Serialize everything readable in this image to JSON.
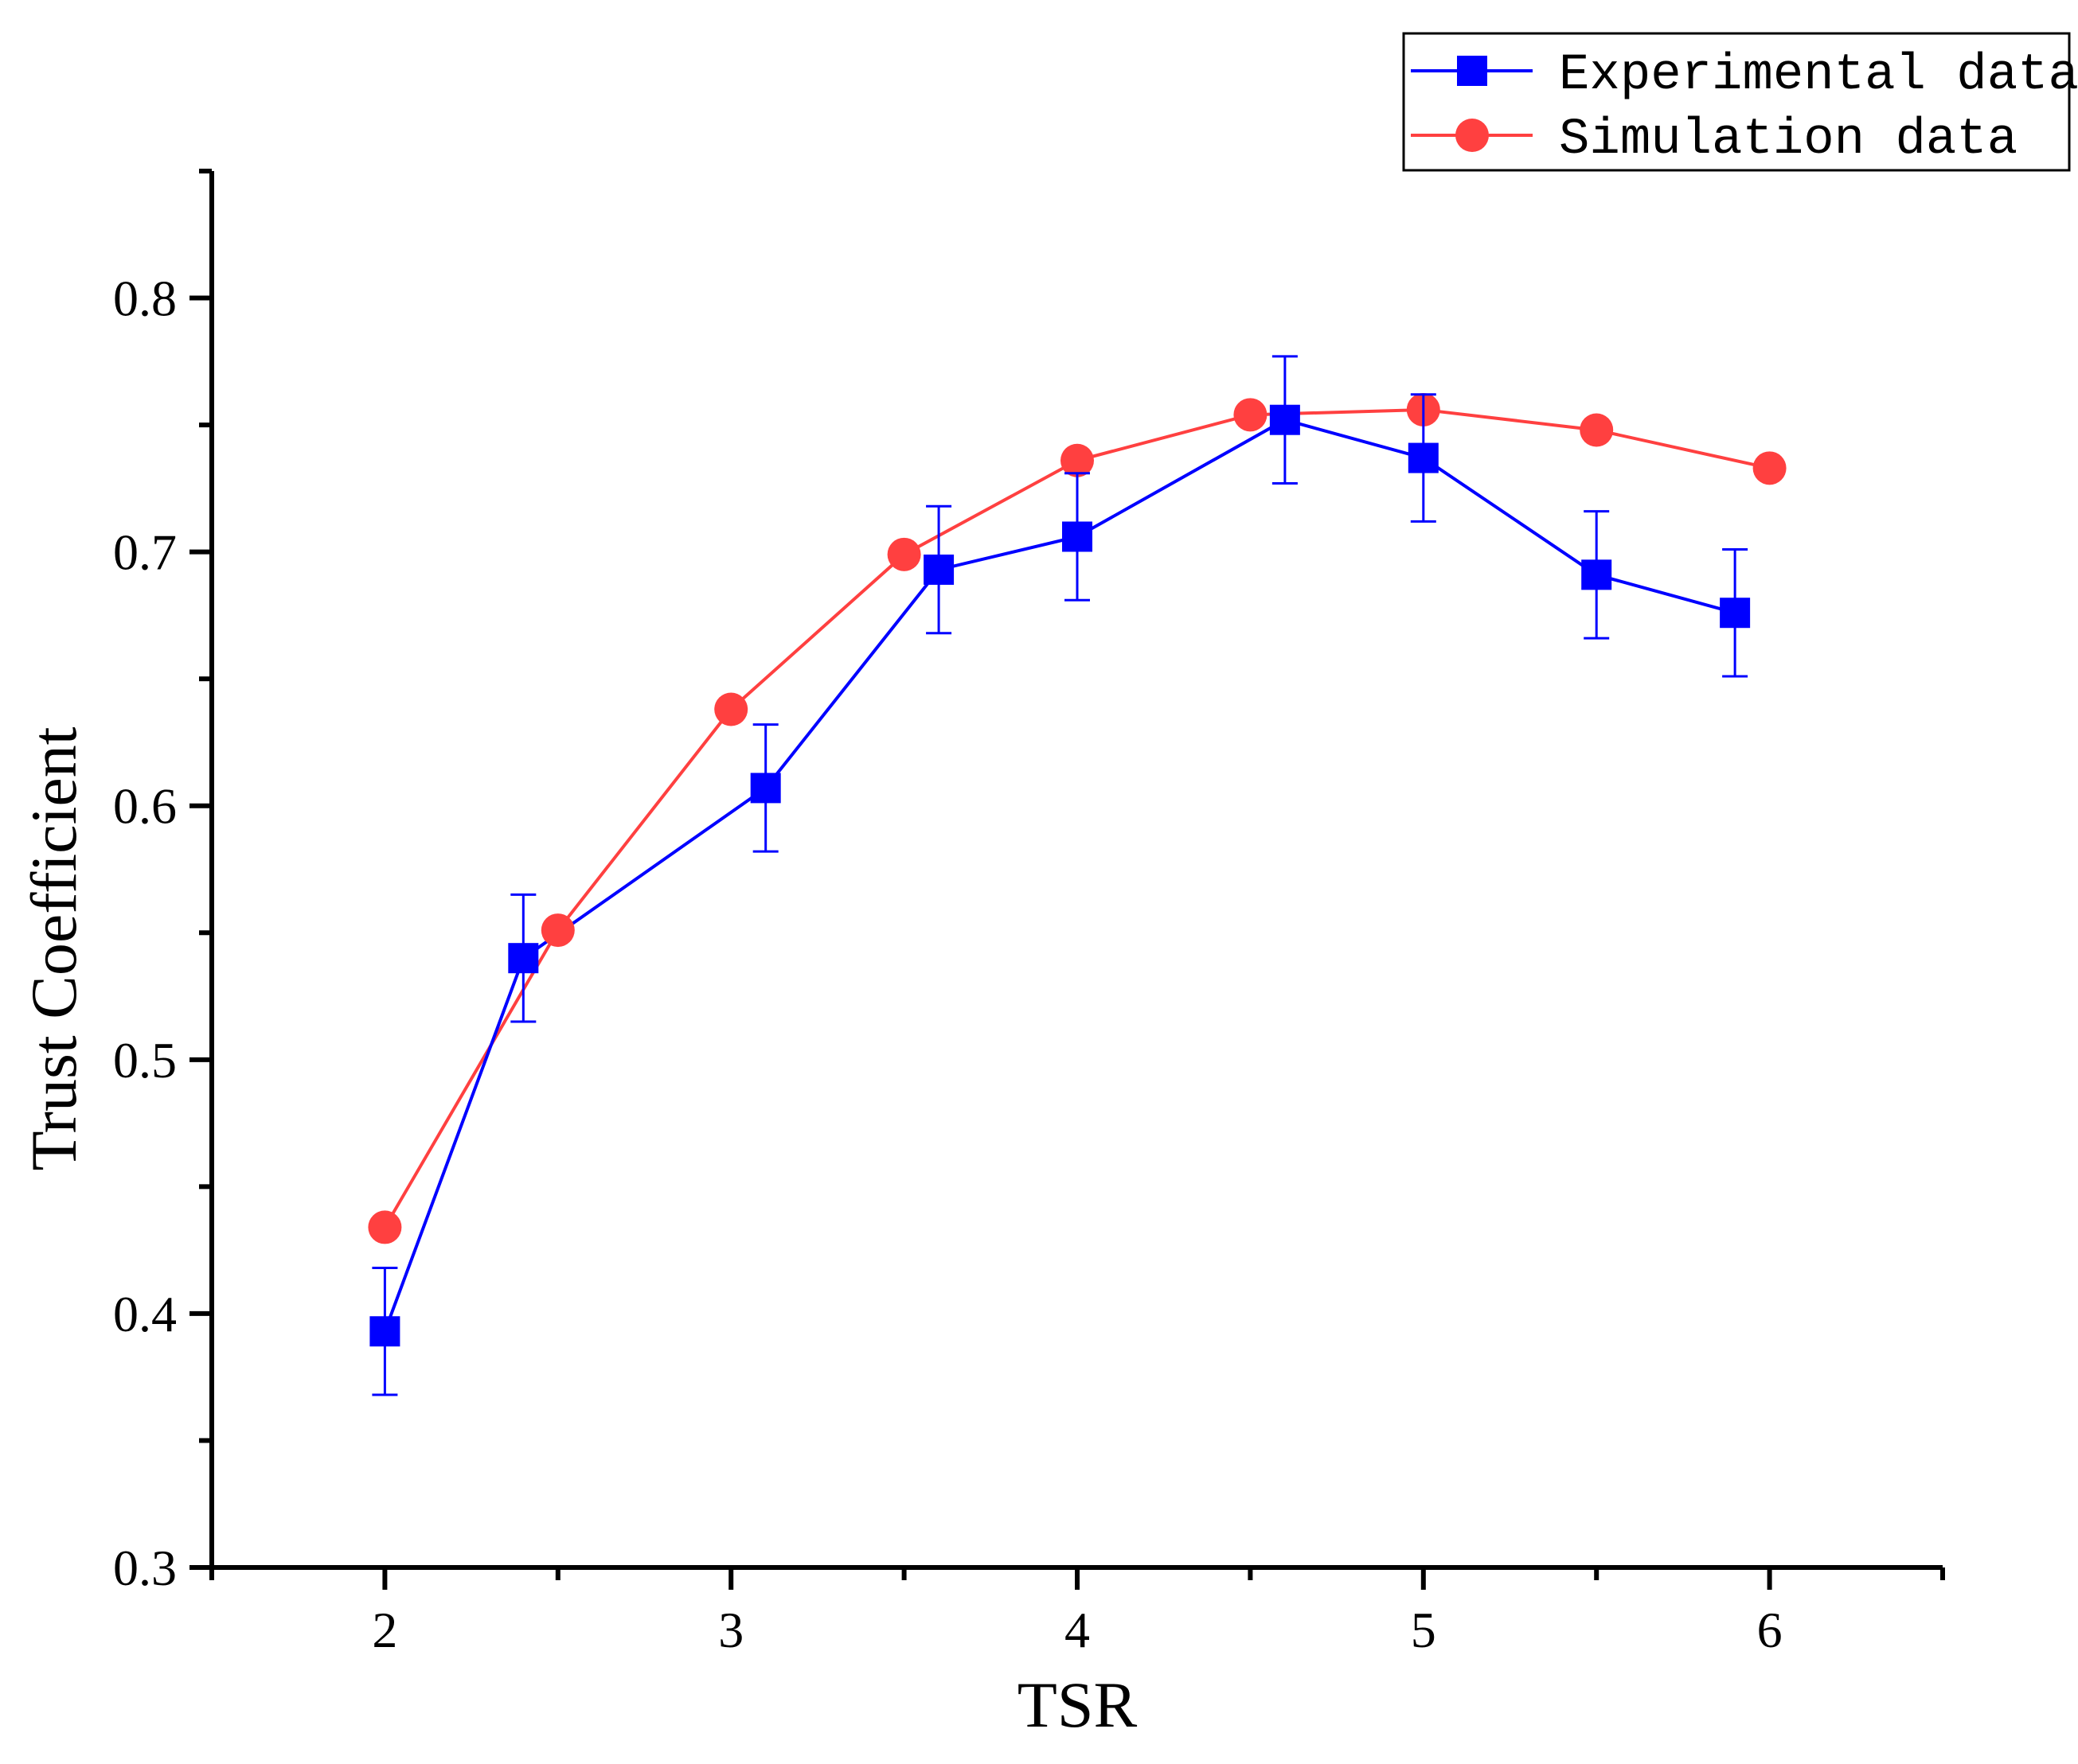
{
  "chart_data": {
    "type": "line",
    "title": "",
    "xlabel": "TSR",
    "ylabel": "Trust Coefficient",
    "xlim": [
      1.5,
      6.5
    ],
    "ylim": [
      0.3,
      0.85
    ],
    "x_ticks": [
      2,
      3,
      4,
      5,
      6
    ],
    "x_tick_labels": [
      "2",
      "3",
      "4",
      "5",
      "6"
    ],
    "y_ticks": [
      0.3,
      0.4,
      0.5,
      0.6,
      0.7,
      0.8
    ],
    "y_tick_labels": [
      "0.3",
      "0.4",
      "0.5",
      "0.6",
      "0.7",
      "0.8"
    ],
    "legend_position": "top-right",
    "series": [
      {
        "name": "Experimental data",
        "color": "#0000ff",
        "marker": "square",
        "x": [
          2.0,
          2.4,
          3.1,
          3.6,
          4.0,
          4.6,
          5.0,
          5.5,
          5.9
        ],
        "y": [
          0.393,
          0.54,
          0.607,
          0.693,
          0.706,
          0.752,
          0.737,
          0.691,
          0.676
        ],
        "error": [
          0.025,
          0.025,
          0.025,
          0.025,
          0.025,
          0.025,
          0.025,
          0.025,
          0.025
        ]
      },
      {
        "name": "Simulation data",
        "color": "#ff4040",
        "marker": "circle",
        "x": [
          2.0,
          2.5,
          3.0,
          3.5,
          4.0,
          4.5,
          5.0,
          5.5,
          6.0
        ],
        "y": [
          0.434,
          0.551,
          0.638,
          0.699,
          0.736,
          0.754,
          0.756,
          0.748,
          0.733
        ]
      }
    ]
  }
}
